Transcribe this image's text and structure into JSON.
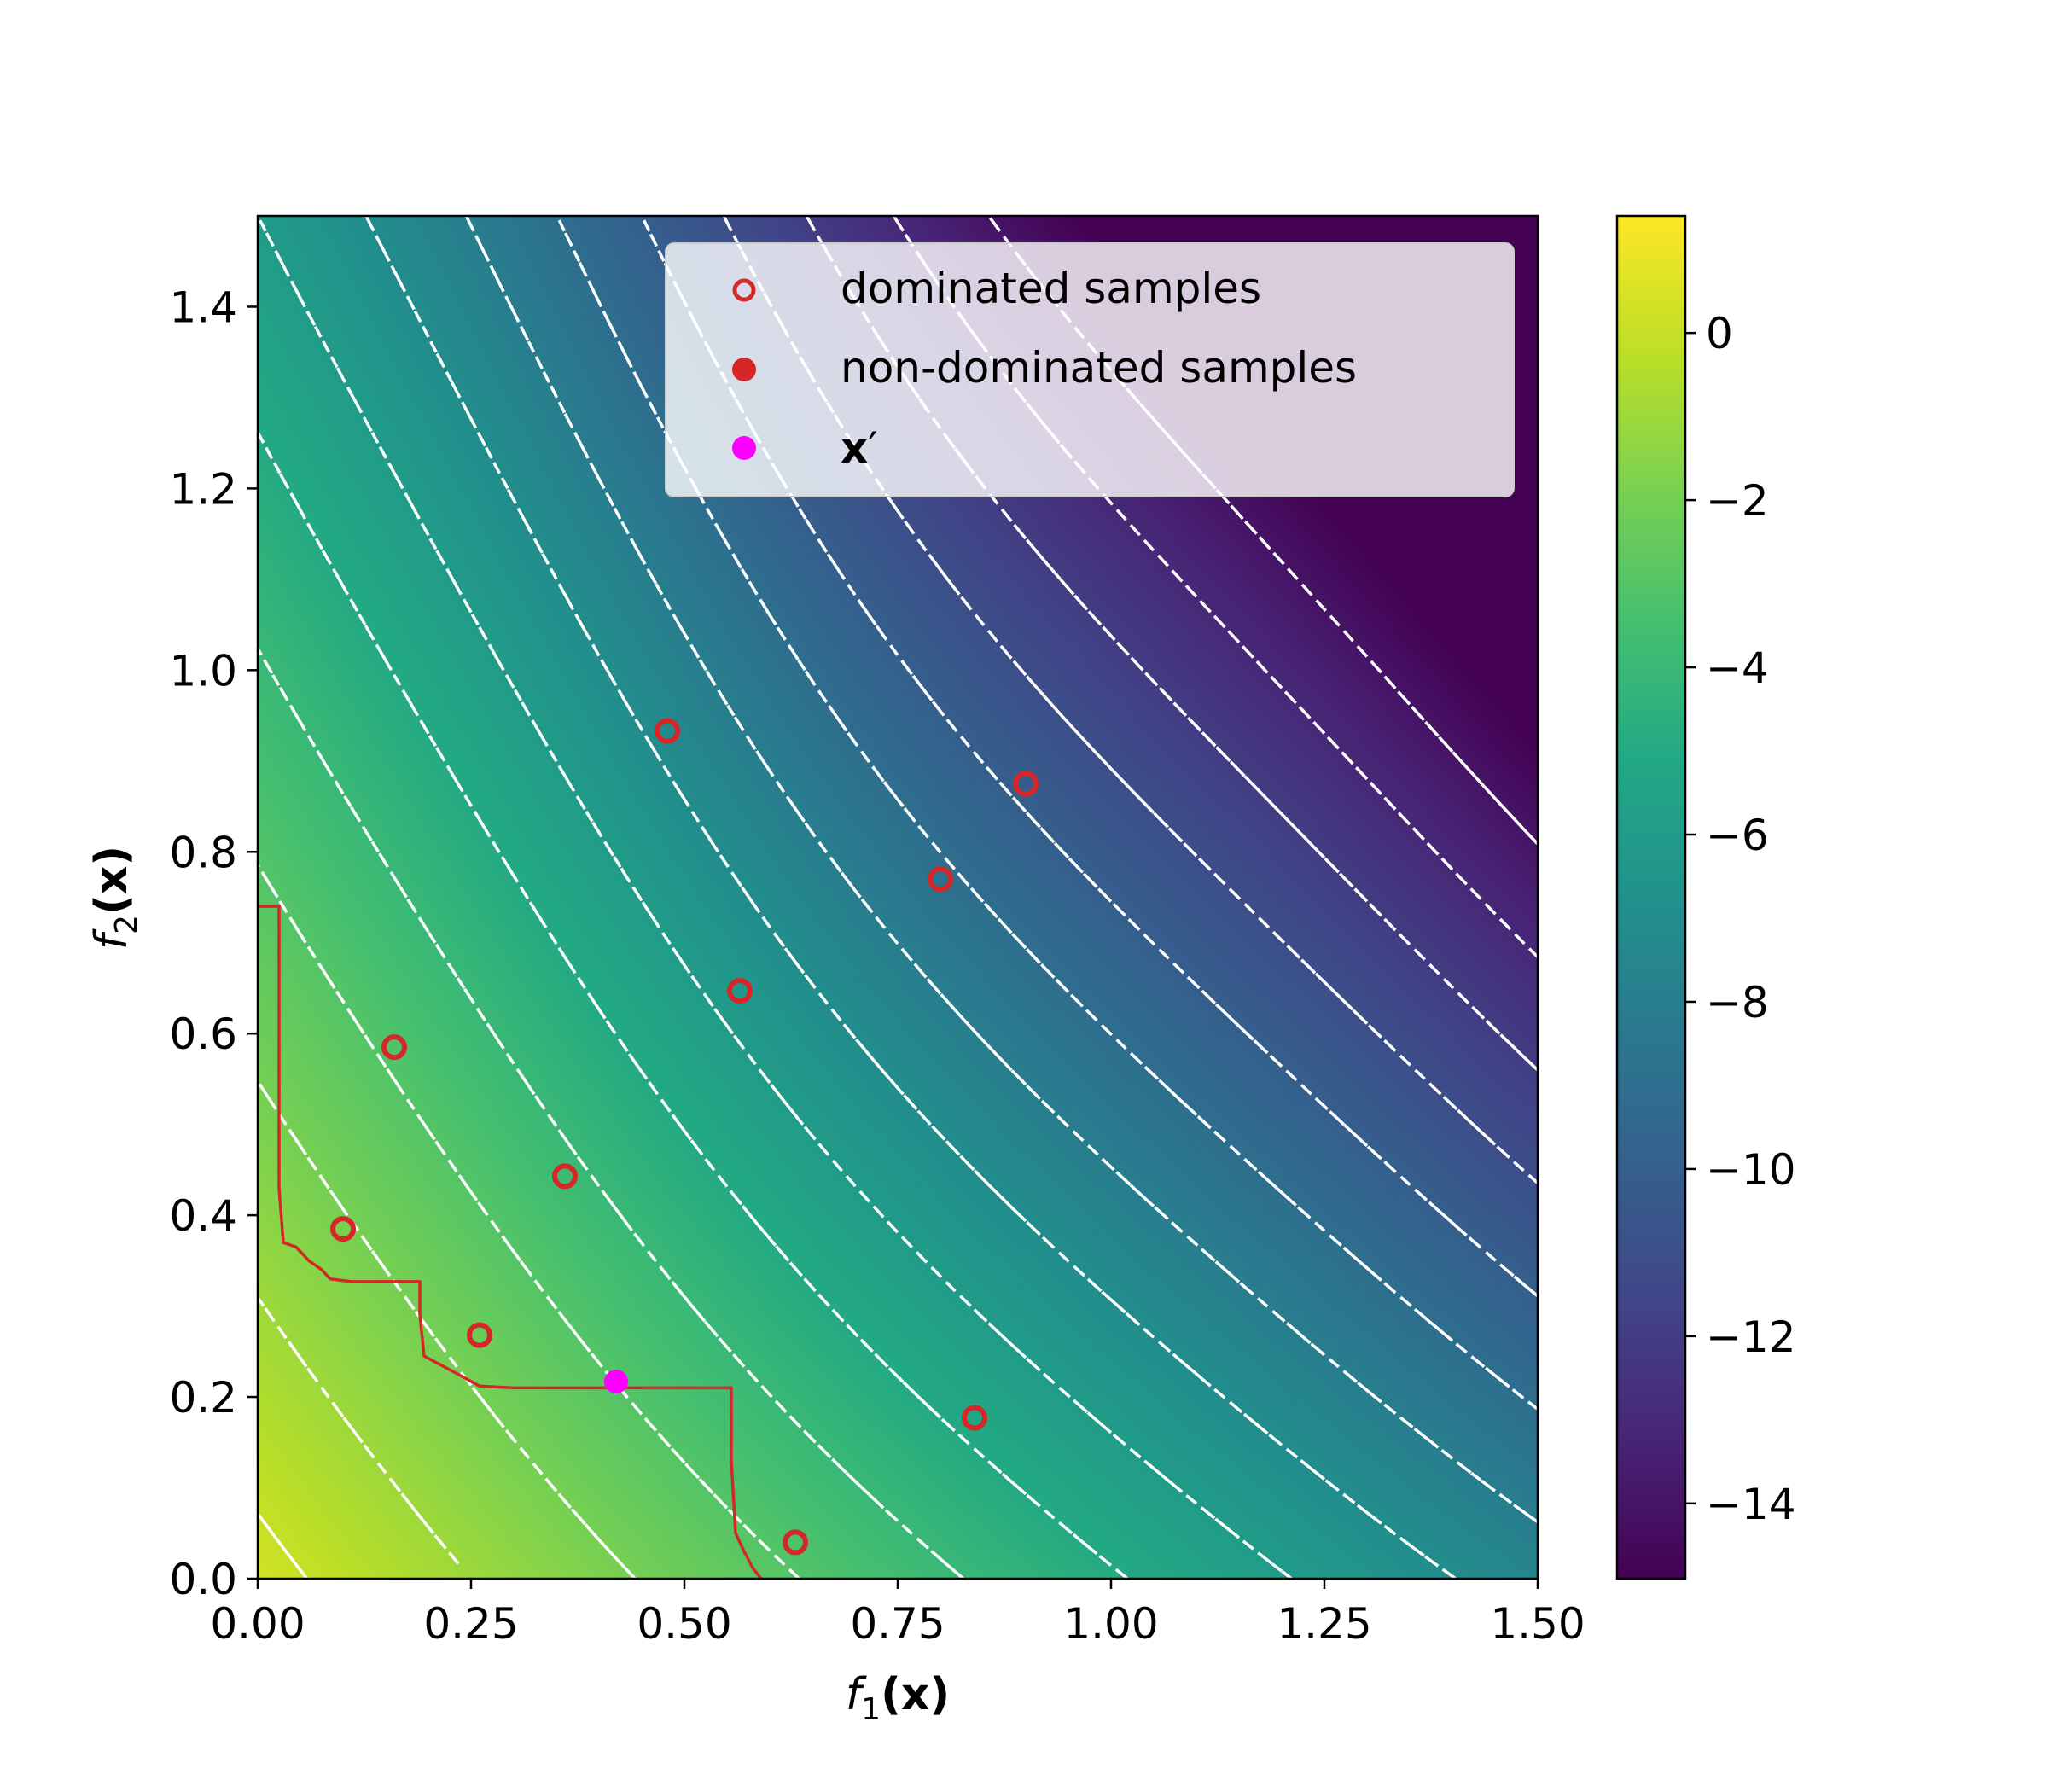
{
  "chart_data": {
    "type": "heatmap",
    "xlabel_italic": "f",
    "xlabel_sub": "1",
    "xlabel_arg": "(x)",
    "ylabel_italic": "f",
    "ylabel_sub": "2",
    "ylabel_arg": "(x)",
    "xlim": [
      0.0,
      1.5
    ],
    "ylim": [
      0.0,
      1.5
    ],
    "xticks": [
      0.0,
      0.25,
      0.5,
      0.75,
      1.0,
      1.25,
      1.5
    ],
    "xtick_labels": [
      "0.00",
      "0.25",
      "0.50",
      "0.75",
      "1.00",
      "1.25",
      "1.50"
    ],
    "yticks": [
      0.0,
      0.2,
      0.4,
      0.6,
      0.8,
      1.0,
      1.2,
      1.4
    ],
    "ytick_labels": [
      "0.0",
      "0.2",
      "0.4",
      "0.6",
      "0.8",
      "1.0",
      "1.2",
      "1.4"
    ],
    "colorbar": {
      "colormap": "viridis",
      "vmin": -14.9,
      "vmax": 1.4,
      "ticks": [
        0,
        -2,
        -4,
        -6,
        -8,
        -10,
        -12,
        -14
      ],
      "tick_labels": [
        "0",
        "−2",
        "−4",
        "−6",
        "−8",
        "−10",
        "−12",
        "−14"
      ]
    },
    "contour_levels": [
      0,
      -1,
      -2,
      -3,
      -4,
      -5,
      -6,
      -7,
      -8,
      -9,
      -10,
      -11,
      -12,
      -13,
      -14
    ],
    "legend": {
      "placement": "top-right",
      "entries": [
        {
          "label": "dominated samples",
          "marker": "open-circle",
          "color": "#d62728"
        },
        {
          "label": "non-dominated samples",
          "marker": "filled-circle",
          "color": "#d62728"
        },
        {
          "label_bold": "x",
          "label_prime": "′",
          "marker": "filled-circle",
          "color": "#ff00ff"
        }
      ]
    },
    "dominated_samples": [
      {
        "x": 0.1,
        "y": 0.385
      },
      {
        "x": 0.16,
        "y": 0.585
      },
      {
        "x": 0.26,
        "y": 0.268
      },
      {
        "x": 0.36,
        "y": 0.443
      },
      {
        "x": 0.48,
        "y": 0.933
      },
      {
        "x": 0.565,
        "y": 0.647
      },
      {
        "x": 0.63,
        "y": 0.04
      },
      {
        "x": 0.8,
        "y": 0.77
      },
      {
        "x": 0.84,
        "y": 0.177
      },
      {
        "x": 0.9,
        "y": 0.875
      }
    ],
    "non_dominated_samples": [],
    "x_prime": {
      "x": 0.42,
      "y": 0.217
    },
    "pareto_front": [
      [
        0.0,
        0.74
      ],
      [
        0.025,
        0.74
      ],
      [
        0.025,
        0.43
      ],
      [
        0.03,
        0.37
      ],
      [
        0.045,
        0.365
      ],
      [
        0.06,
        0.35
      ],
      [
        0.075,
        0.34
      ],
      [
        0.085,
        0.33
      ],
      [
        0.11,
        0.327
      ],
      [
        0.19,
        0.327
      ],
      [
        0.19,
        0.29
      ],
      [
        0.195,
        0.245
      ],
      [
        0.215,
        0.235
      ],
      [
        0.235,
        0.225
      ],
      [
        0.26,
        0.212
      ],
      [
        0.3,
        0.21
      ],
      [
        0.555,
        0.21
      ],
      [
        0.555,
        0.13
      ],
      [
        0.56,
        0.05
      ],
      [
        0.57,
        0.03
      ],
      [
        0.58,
        0.012
      ],
      [
        0.59,
        0.0
      ]
    ],
    "colors": {
      "frontier": "#d62728",
      "sample": "#d62728",
      "x_prime": "#ff00ff",
      "contour": "#ffffff"
    }
  }
}
